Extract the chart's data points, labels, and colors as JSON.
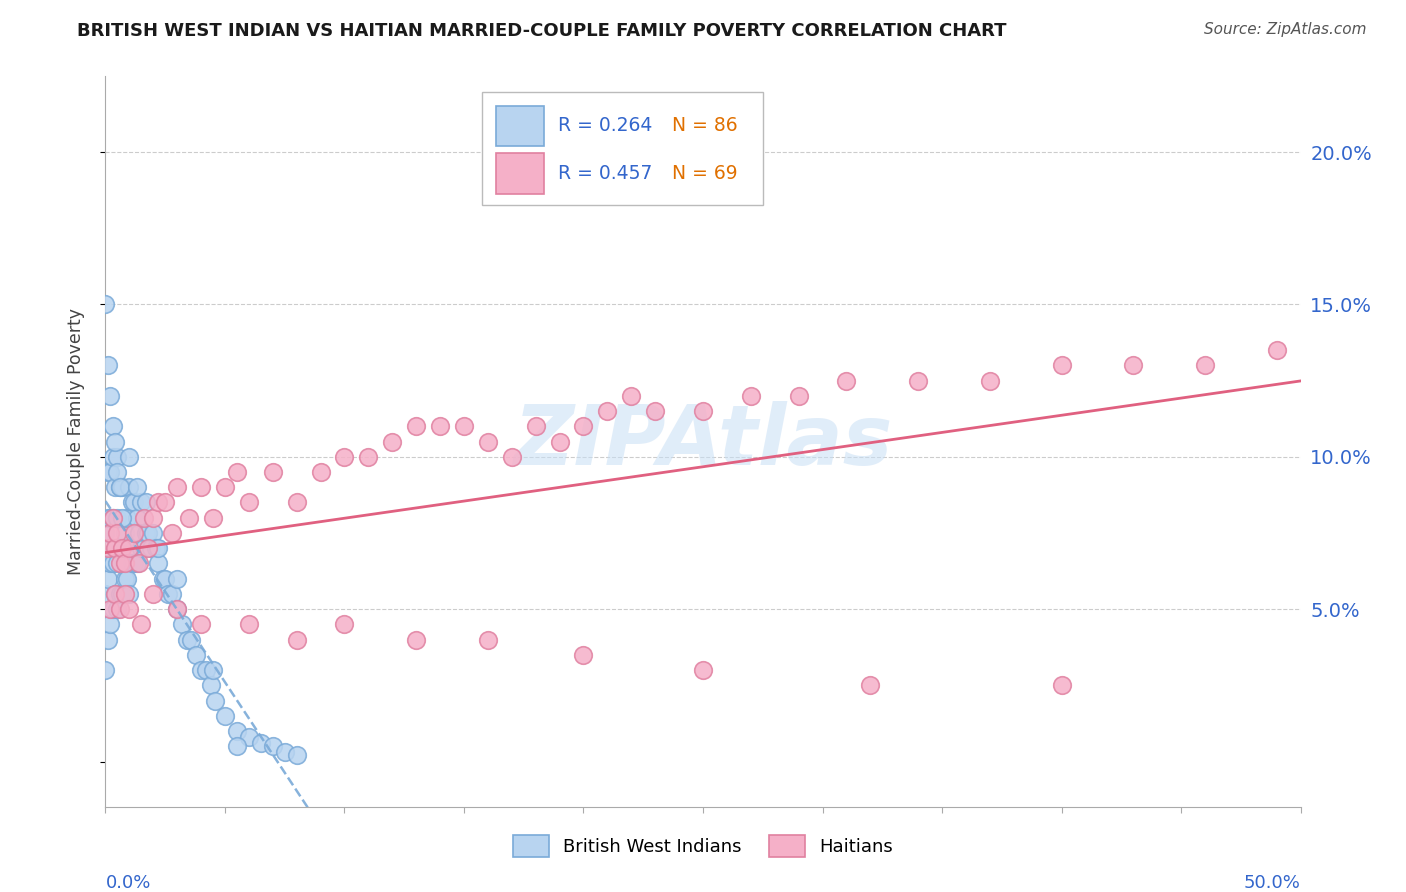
{
  "title": "BRITISH WEST INDIAN VS HAITIAN MARRIED-COUPLE FAMILY POVERTY CORRELATION CHART",
  "source": "Source: ZipAtlas.com",
  "ylabel": "Married-Couple Family Poverty",
  "xmin": 0.0,
  "xmax": 0.5,
  "ymin": -0.015,
  "ymax": 0.225,
  "yticks": [
    0.0,
    0.05,
    0.1,
    0.15,
    0.2
  ],
  "ytick_labels": [
    "",
    "5.0%",
    "10.0%",
    "15.0%",
    "20.0%"
  ],
  "watermark": "ZIPAtlas",
  "legend_r1": "R = 0.264",
  "legend_n1": "N = 86",
  "legend_r2": "R = 0.457",
  "legend_n2": "N = 69",
  "color_bwi_fill": "#b8d4f0",
  "color_bwi_edge": "#7aaad8",
  "color_haitian_fill": "#f5b0c8",
  "color_haitian_edge": "#e080a0",
  "color_bwi_line": "#7aaad8",
  "color_haitian_line": "#e06080",
  "grid_color": "#cccccc",
  "watermark_color": "#c8dff5",
  "bwi_x": [
    0.0,
    0.0,
    0.0,
    0.001,
    0.001,
    0.001,
    0.001,
    0.002,
    0.002,
    0.002,
    0.002,
    0.003,
    0.003,
    0.003,
    0.003,
    0.004,
    0.004,
    0.004,
    0.005,
    0.005,
    0.005,
    0.005,
    0.006,
    0.006,
    0.006,
    0.007,
    0.007,
    0.007,
    0.008,
    0.008,
    0.009,
    0.009,
    0.01,
    0.01,
    0.01,
    0.011,
    0.011,
    0.012,
    0.012,
    0.013,
    0.013,
    0.014,
    0.015,
    0.015,
    0.016,
    0.017,
    0.018,
    0.019,
    0.02,
    0.021,
    0.022,
    0.024,
    0.025,
    0.026,
    0.028,
    0.03,
    0.032,
    0.034,
    0.036,
    0.038,
    0.04,
    0.042,
    0.044,
    0.046,
    0.05,
    0.055,
    0.06,
    0.065,
    0.07,
    0.075,
    0.08,
    0.0,
    0.001,
    0.002,
    0.003,
    0.004,
    0.005,
    0.006,
    0.007,
    0.01,
    0.013,
    0.017,
    0.022,
    0.03,
    0.045,
    0.055
  ],
  "bwi_y": [
    0.03,
    0.055,
    0.075,
    0.04,
    0.06,
    0.08,
    0.095,
    0.045,
    0.065,
    0.08,
    0.095,
    0.05,
    0.065,
    0.08,
    0.1,
    0.055,
    0.07,
    0.09,
    0.05,
    0.065,
    0.08,
    0.1,
    0.055,
    0.07,
    0.09,
    0.055,
    0.07,
    0.09,
    0.06,
    0.075,
    0.06,
    0.08,
    0.055,
    0.07,
    0.09,
    0.065,
    0.085,
    0.065,
    0.085,
    0.065,
    0.08,
    0.075,
    0.07,
    0.085,
    0.07,
    0.075,
    0.075,
    0.07,
    0.075,
    0.07,
    0.065,
    0.06,
    0.06,
    0.055,
    0.055,
    0.05,
    0.045,
    0.04,
    0.04,
    0.035,
    0.03,
    0.03,
    0.025,
    0.02,
    0.015,
    0.01,
    0.008,
    0.006,
    0.005,
    0.003,
    0.002,
    0.15,
    0.13,
    0.12,
    0.11,
    0.105,
    0.095,
    0.09,
    0.08,
    0.1,
    0.09,
    0.085,
    0.07,
    0.06,
    0.03,
    0.005
  ],
  "haitian_x": [
    0.001,
    0.002,
    0.003,
    0.004,
    0.005,
    0.006,
    0.007,
    0.008,
    0.01,
    0.012,
    0.014,
    0.016,
    0.018,
    0.02,
    0.022,
    0.025,
    0.028,
    0.03,
    0.035,
    0.04,
    0.045,
    0.05,
    0.055,
    0.06,
    0.07,
    0.08,
    0.09,
    0.1,
    0.11,
    0.12,
    0.13,
    0.14,
    0.15,
    0.16,
    0.17,
    0.18,
    0.19,
    0.2,
    0.21,
    0.22,
    0.23,
    0.25,
    0.27,
    0.29,
    0.31,
    0.34,
    0.37,
    0.4,
    0.43,
    0.46,
    0.49,
    0.002,
    0.004,
    0.006,
    0.008,
    0.01,
    0.015,
    0.02,
    0.03,
    0.04,
    0.06,
    0.08,
    0.1,
    0.13,
    0.16,
    0.2,
    0.25,
    0.32,
    0.4
  ],
  "haitian_y": [
    0.07,
    0.075,
    0.08,
    0.07,
    0.075,
    0.065,
    0.07,
    0.065,
    0.07,
    0.075,
    0.065,
    0.08,
    0.07,
    0.08,
    0.085,
    0.085,
    0.075,
    0.09,
    0.08,
    0.09,
    0.08,
    0.09,
    0.095,
    0.085,
    0.095,
    0.085,
    0.095,
    0.1,
    0.1,
    0.105,
    0.11,
    0.11,
    0.11,
    0.105,
    0.1,
    0.11,
    0.105,
    0.11,
    0.115,
    0.12,
    0.115,
    0.115,
    0.12,
    0.12,
    0.125,
    0.125,
    0.125,
    0.13,
    0.13,
    0.13,
    0.135,
    0.05,
    0.055,
    0.05,
    0.055,
    0.05,
    0.045,
    0.055,
    0.05,
    0.045,
    0.045,
    0.04,
    0.045,
    0.04,
    0.04,
    0.035,
    0.03,
    0.025,
    0.025
  ]
}
